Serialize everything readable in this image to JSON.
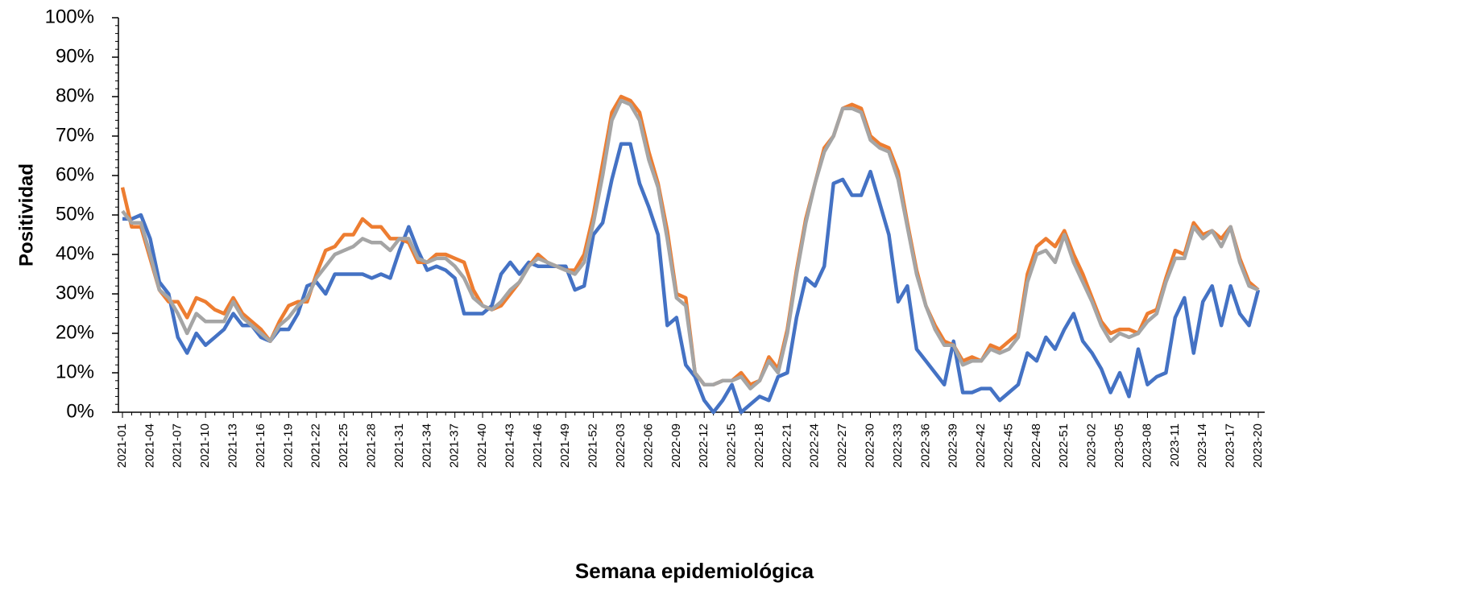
{
  "chart_data": {
    "type": "line",
    "x_label": "Semana epidemiológica",
    "y_label": "Positividad",
    "categories": [
      "2021-01",
      null,
      null,
      "2021-04",
      null,
      null,
      "2021-07",
      null,
      null,
      "2021-10",
      null,
      null,
      "2021-13",
      null,
      null,
      "2021-16",
      null,
      null,
      "2021-19",
      null,
      null,
      "2021-22",
      null,
      null,
      "2021-25",
      null,
      null,
      "2021-28",
      null,
      null,
      "2021-31",
      null,
      null,
      "2021-34",
      null,
      null,
      "2021-37",
      null,
      null,
      "2021-40",
      null,
      null,
      "2021-43",
      null,
      null,
      "2021-46",
      null,
      null,
      "2021-49",
      null,
      null,
      "2021-52",
      null,
      null,
      "2022-03",
      null,
      null,
      "2022-06",
      null,
      null,
      "2022-09",
      null,
      null,
      "2022-12",
      null,
      null,
      "2022-15",
      null,
      null,
      "2022-18",
      null,
      null,
      "2022-21",
      null,
      null,
      "2022-24",
      null,
      null,
      "2022-27",
      null,
      null,
      "2022-30",
      null,
      null,
      "2022-33",
      null,
      null,
      "2022-36",
      null,
      null,
      "2022-39",
      null,
      null,
      "2022-42",
      null,
      null,
      "2022-45",
      null,
      null,
      "2022-48",
      null,
      null,
      "2022-51",
      null,
      null,
      "2023-02",
      null,
      null,
      "2023-05",
      null,
      null,
      "2023-08",
      null,
      null,
      "2023-11",
      null,
      null,
      "2023-14",
      null,
      null,
      "2023-17",
      null,
      null,
      "2023-20"
    ],
    "series": [
      {
        "color": "#4472c4",
        "values": [
          49,
          49,
          50,
          44,
          33,
          30,
          19,
          15,
          20,
          17,
          19,
          21,
          25,
          22,
          22,
          19,
          18,
          21,
          21,
          25,
          32,
          33,
          30,
          35,
          35,
          35,
          35,
          34,
          35,
          34,
          41,
          47,
          41,
          36,
          37,
          36,
          34,
          25,
          25,
          25,
          27,
          35,
          38,
          35,
          38,
          37,
          37,
          37,
          37,
          31,
          32,
          45,
          48,
          59,
          68,
          68,
          58,
          52,
          45,
          22,
          24,
          12,
          9,
          3,
          0,
          3,
          7,
          0,
          2,
          4,
          3,
          9,
          10,
          24,
          34,
          32,
          37,
          58,
          59,
          55,
          55,
          61,
          53,
          45,
          28,
          32,
          16,
          13,
          10,
          7,
          18,
          5,
          5,
          6,
          6,
          3,
          5,
          7,
          15,
          13,
          19,
          16,
          21,
          25,
          18,
          15,
          11,
          5,
          10,
          4,
          16,
          7,
          9,
          10,
          24,
          29,
          15,
          28,
          32,
          22,
          32,
          25,
          22,
          31
        ]
      },
      {
        "color": "#ed7d31",
        "values": [
          57,
          47,
          47,
          39,
          31,
          28,
          28,
          24,
          29,
          28,
          26,
          25,
          29,
          25,
          23,
          21,
          18,
          23,
          27,
          28,
          28,
          35,
          41,
          42,
          45,
          45,
          49,
          47,
          47,
          44,
          44,
          43,
          38,
          38,
          40,
          40,
          39,
          38,
          31,
          27,
          26,
          27,
          30,
          33,
          37,
          40,
          38,
          37,
          36,
          36,
          40,
          50,
          63,
          76,
          80,
          79,
          76,
          66,
          58,
          46,
          30,
          29,
          10,
          7,
          7,
          8,
          8,
          10,
          7,
          8,
          14,
          11,
          21,
          36,
          49,
          58,
          67,
          70,
          77,
          78,
          77,
          70,
          68,
          67,
          61,
          48,
          36,
          27,
          22,
          18,
          17,
          13,
          14,
          13,
          17,
          16,
          18,
          20,
          35,
          42,
          44,
          42,
          46,
          40,
          35,
          29,
          23,
          20,
          21,
          21,
          20,
          25,
          26,
          34,
          41,
          40,
          48,
          45,
          46,
          44,
          47,
          39,
          33,
          31
        ]
      },
      {
        "color": "#a5a5a5",
        "values": [
          51,
          48,
          48,
          40,
          31,
          29,
          25,
          20,
          25,
          23,
          23,
          23,
          28,
          24,
          22,
          20,
          18,
          22,
          24,
          27,
          29,
          34,
          37,
          40,
          41,
          42,
          44,
          43,
          43,
          41,
          44,
          44,
          39,
          38,
          39,
          39,
          37,
          34,
          29,
          27,
          26,
          28,
          31,
          33,
          37,
          39,
          38,
          37,
          36,
          35,
          38,
          48,
          60,
          74,
          79,
          78,
          74,
          64,
          57,
          44,
          29,
          27,
          10,
          7,
          7,
          8,
          8,
          9,
          6,
          8,
          13,
          10,
          20,
          35,
          48,
          58,
          66,
          70,
          77,
          77,
          76,
          69,
          67,
          66,
          59,
          47,
          35,
          27,
          21,
          17,
          17,
          12,
          13,
          13,
          16,
          15,
          16,
          19,
          33,
          40,
          41,
          38,
          45,
          38,
          33,
          28,
          22,
          18,
          20,
          19,
          20,
          23,
          25,
          33,
          39,
          39,
          47,
          44,
          46,
          42,
          47,
          38,
          32,
          31
        ]
      }
    ],
    "ylim": [
      0,
      100
    ],
    "yticks": [
      {
        "value": 0,
        "label": "0%"
      },
      {
        "value": 10,
        "label": "10%"
      },
      {
        "value": 20,
        "label": "20%"
      },
      {
        "value": 30,
        "label": "30%"
      },
      {
        "value": 40,
        "label": "40%"
      },
      {
        "value": 50,
        "label": "50%"
      },
      {
        "value": 60,
        "label": "60%"
      },
      {
        "value": 70,
        "label": "70%"
      },
      {
        "value": 80,
        "label": "80%"
      },
      {
        "value": 90,
        "label": "90%"
      },
      {
        "value": 100,
        "label": "100%"
      }
    ]
  }
}
